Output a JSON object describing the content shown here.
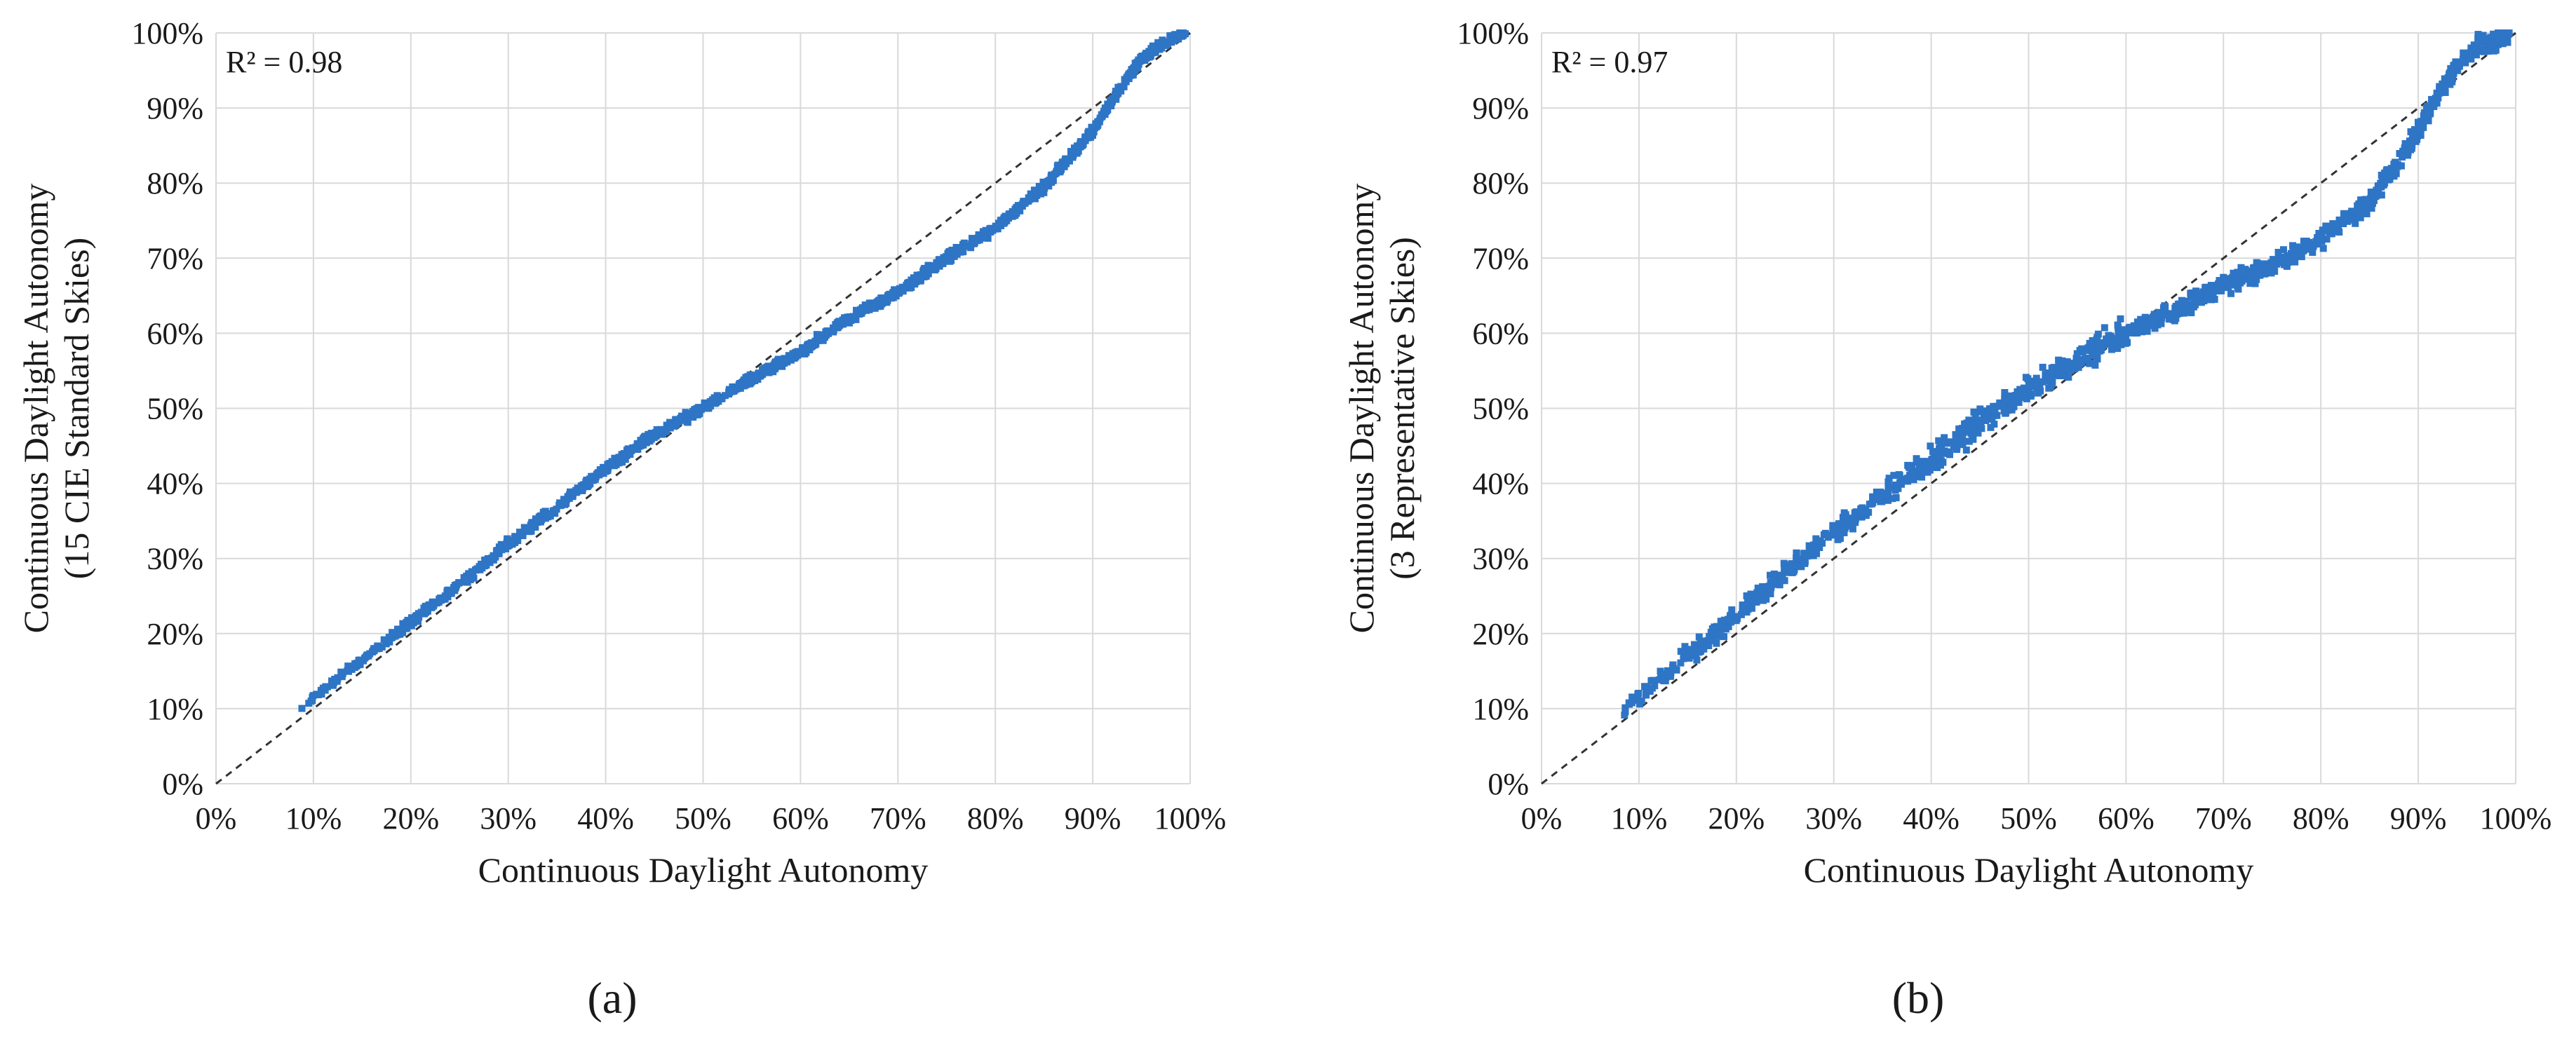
{
  "chart_data": [
    {
      "type": "scatter",
      "panel_label": "(a)",
      "annotation": "R² = 0.98",
      "xlabel": "Continuous Daylight Autonomy",
      "ylabel": "Continuous Daylight Autonomy",
      "ylabel_line2": "(15 CIE Standard Skies)",
      "xlim": [
        0,
        100
      ],
      "ylim": [
        0,
        100
      ],
      "x_ticks": [
        "0%",
        "10%",
        "20%",
        "30%",
        "40%",
        "50%",
        "60%",
        "70%",
        "80%",
        "90%",
        "100%"
      ],
      "y_ticks": [
        "0%",
        "10%",
        "20%",
        "30%",
        "40%",
        "50%",
        "60%",
        "70%",
        "80%",
        "90%",
        "100%"
      ],
      "grid": true,
      "reference_line": "y = x (dashed)",
      "marker_color": "#2e75c6",
      "series": [
        {
          "trend": [
            [
              8.5,
              9.5
            ],
            [
              10,
              11.5
            ],
            [
              15,
              16.5
            ],
            [
              20,
              21.5
            ],
            [
              25,
              26.5
            ],
            [
              30,
              32
            ],
            [
              35,
              36.8
            ],
            [
              40,
              42
            ],
            [
              45,
              46.5
            ],
            [
              50,
              50
            ],
            [
              55,
              54
            ],
            [
              60,
              57.5
            ],
            [
              65,
              62
            ],
            [
              70,
              65.5
            ],
            [
              75,
              70
            ],
            [
              80,
              74
            ],
            [
              85,
              79.5
            ],
            [
              90,
              87
            ],
            [
              93,
              93
            ],
            [
              95,
              96.5
            ],
            [
              97,
              98.5
            ],
            [
              99.5,
              100
            ]
          ],
          "spread": 0.9,
          "n_points": 1400
        }
      ]
    },
    {
      "type": "scatter",
      "panel_label": "(b)",
      "annotation": "R² = 0.97",
      "xlabel": "Continuous Daylight Autonomy",
      "ylabel": "Continuous Daylight Autonomy",
      "ylabel_line2": "(3 Representative Skies)",
      "xlim": [
        0,
        100
      ],
      "ylim": [
        0,
        100
      ],
      "x_ticks": [
        "0%",
        "10%",
        "20%",
        "30%",
        "40%",
        "50%",
        "60%",
        "70%",
        "80%",
        "90%",
        "100%"
      ],
      "y_ticks": [
        "0%",
        "10%",
        "20%",
        "30%",
        "40%",
        "50%",
        "60%",
        "70%",
        "80%",
        "90%",
        "100%"
      ],
      "grid": true,
      "reference_line": "y = x (dashed)",
      "marker_color": "#2e75c6",
      "series": [
        {
          "trend": [
            [
              8.5,
              9.5
            ],
            [
              10,
              11.5
            ],
            [
              15,
              17
            ],
            [
              20,
              22.5
            ],
            [
              25,
              28
            ],
            [
              30,
              33.5
            ],
            [
              35,
              38.5
            ],
            [
              40,
              43
            ],
            [
              45,
              48
            ],
            [
              50,
              52.5
            ],
            [
              55,
              56.5
            ],
            [
              60,
              60
            ],
            [
              65,
              63
            ],
            [
              70,
              66.5
            ],
            [
              75,
              69
            ],
            [
              80,
              72.5
            ],
            [
              85,
              77.5
            ],
            [
              88,
              83
            ],
            [
              90,
              87
            ],
            [
              92,
              91.5
            ],
            [
              94,
              95.5
            ],
            [
              96,
              98
            ],
            [
              99.5,
              100
            ]
          ],
          "spread": 1.8,
          "n_points": 1400
        }
      ]
    }
  ]
}
